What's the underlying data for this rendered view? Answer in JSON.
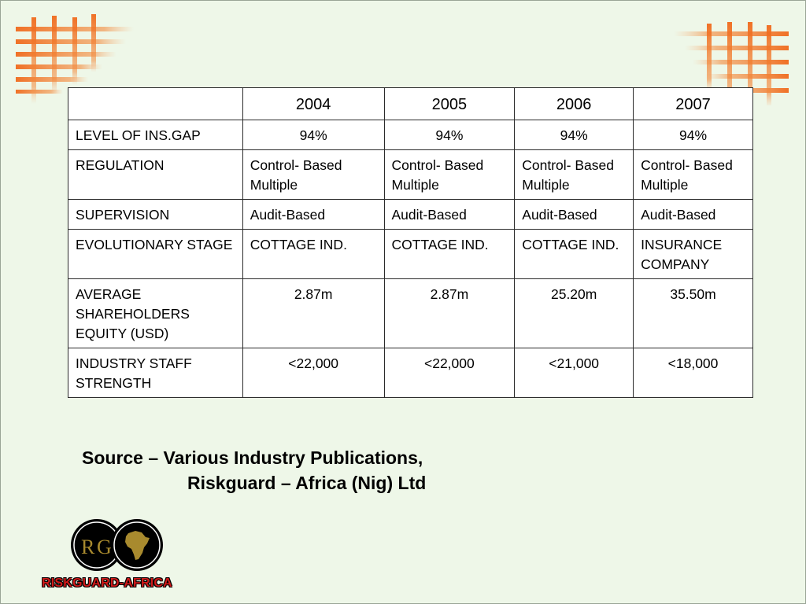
{
  "table": {
    "headers": [
      "",
      "2004",
      "2005",
      "2006",
      "2007"
    ],
    "rows": [
      {
        "label": "LEVEL OF INS.GAP",
        "values": [
          "94%",
          "94%",
          "94%",
          "94%"
        ]
      },
      {
        "label": "REGULATION",
        "values": [
          "Control- Based Multiple",
          "Control- Based Multiple",
          "Control- Based Multiple",
          "Control- Based Multiple"
        ]
      },
      {
        "label": "SUPERVISION",
        "values": [
          "Audit-Based",
          "Audit-Based",
          "Audit-Based",
          "Audit-Based"
        ]
      },
      {
        "label": "EVOLUTIONARY STAGE",
        "values": [
          "COTTAGE IND.",
          "COTTAGE IND.",
          "COTTAGE IND.",
          "INSURANCE COMPANY"
        ]
      },
      {
        "label": "AVERAGE SHAREHOLDERS EQUITY (USD)",
        "values": [
          "2.87m",
          "2.87m",
          "25.20m",
          "35.50m"
        ]
      },
      {
        "label": "INDUSTRY STAFF STRENGTH",
        "values": [
          "<22,000",
          "<22,000",
          "<21,000",
          "<18,000"
        ]
      }
    ]
  },
  "source": {
    "line1": "Source – Various Industry Publications,",
    "line2": "Riskguard – Africa (Nig) Ltd"
  },
  "logo": {
    "monogram_r": "R",
    "monogram_g": "G",
    "company_name": "RISKGUARD-AFRICA"
  },
  "colors": {
    "background": "#eef7e8",
    "grid_accent": "#f06a1c",
    "logo_gold": "#a88a2e",
    "logo_red": "#d11a1a"
  }
}
